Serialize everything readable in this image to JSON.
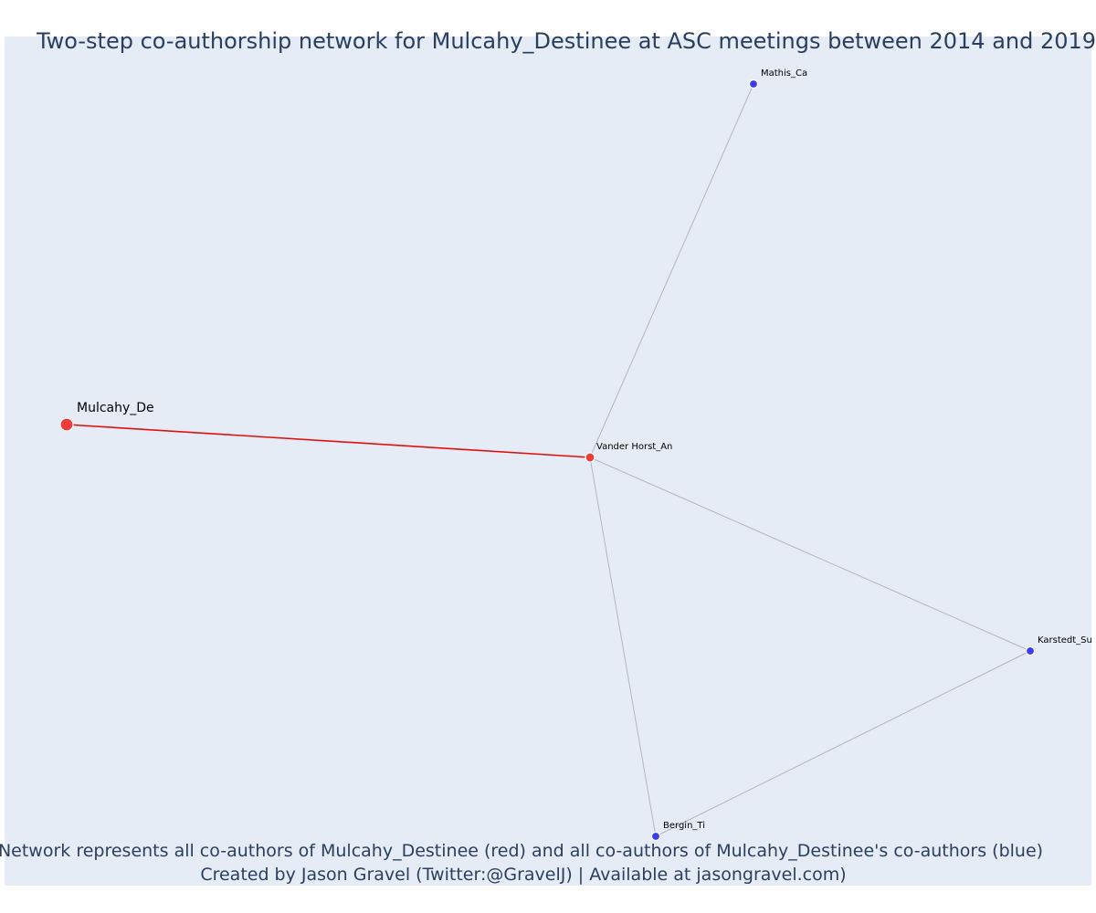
{
  "title": "Two-step co-authorship network for Mulcahy_Destinee at ASC meetings between 2014 and 2019",
  "caption": {
    "line1": "Network represents all co-authors of Mulcahy_Destinee (red) and all co-authors of Mulcahy_Destinee's co-authors (blue)",
    "line2": "Created by Jason Gravel (Twitter:@GravelJ) | Available at jasongravel.com)"
  },
  "colors": {
    "plot_bg": "#e5ecf6",
    "page_bg": "#ffffff",
    "focal_red": "#ef3b3b",
    "coauthor_blue": "#3b3bef",
    "focal_edge": "#e01010",
    "other_edge": "#b4b4c6",
    "text": "#2a3f5f"
  },
  "chart_data": {
    "type": "network",
    "nodes": [
      {
        "id": "mulcahy",
        "label": "Mulcahy_De",
        "group": "focal",
        "role": "ego"
      },
      {
        "id": "vanderhorst",
        "label": "Vander Horst_An",
        "group": "coauthor"
      },
      {
        "id": "mathis",
        "label": "Mathis_Ca",
        "group": "second-step"
      },
      {
        "id": "karstedt",
        "label": "Karstedt_Su",
        "group": "second-step"
      },
      {
        "id": "bergin",
        "label": "Bergin_Ti",
        "group": "second-step"
      }
    ],
    "edges": [
      {
        "source": "mulcahy",
        "target": "vanderhorst",
        "type": "focal"
      },
      {
        "source": "vanderhorst",
        "target": "mathis",
        "type": "other"
      },
      {
        "source": "vanderhorst",
        "target": "karstedt",
        "type": "other"
      },
      {
        "source": "vanderhorst",
        "target": "bergin",
        "type": "other"
      },
      {
        "source": "karstedt",
        "target": "bergin",
        "type": "other"
      }
    ]
  }
}
